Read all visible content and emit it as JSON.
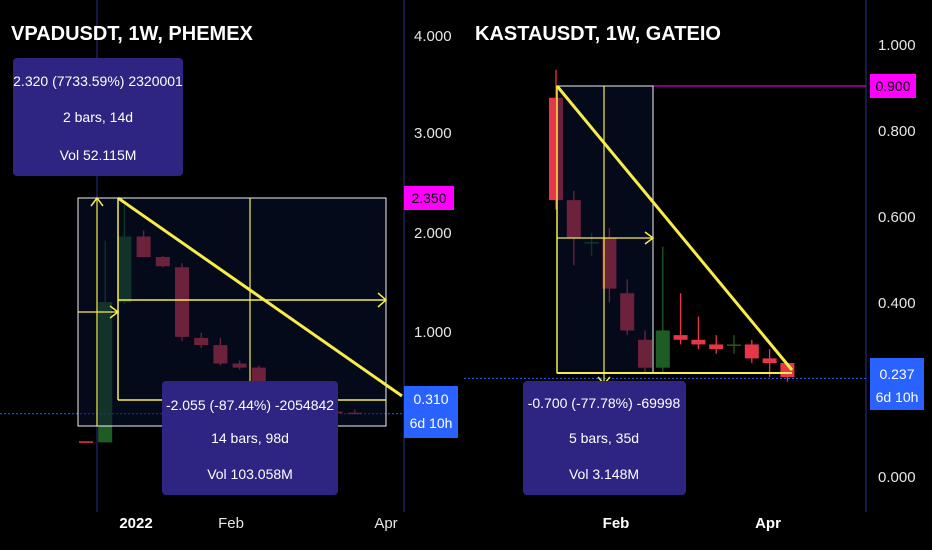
{
  "colors": {
    "background": "#000000",
    "up": "#1e5c25",
    "down": "#e6364a",
    "measure": "#f7ec4b",
    "box_fill": "#2e2482",
    "price_tag_blue": "#2962ff",
    "price_tag_magenta": "#ff00ff",
    "divider": "#2a2f8a"
  },
  "chart_data": [
    {
      "type": "candlestick",
      "title": "VPADUSDT, 1W, PHEMEX",
      "y_ticks": [
        "4.000",
        "3.000",
        "2.000",
        "1.000"
      ],
      "x_ticks": [
        {
          "label": "2022",
          "bold": true
        },
        {
          "label": "Feb",
          "bold": false
        },
        {
          "label": "Apr",
          "bold": false
        }
      ],
      "ylim": [
        -0.65,
        4.35
      ],
      "candles": [
        {
          "o": 0.04,
          "h": 0.04,
          "l": 0.03,
          "c": 0.03
        },
        {
          "o": 0.03,
          "h": 2.0,
          "l": 0.03,
          "c": 1.4
        },
        {
          "o": 1.4,
          "h": 2.35,
          "l": 1.38,
          "c": 2.04
        },
        {
          "o": 2.04,
          "h": 2.1,
          "l": 1.85,
          "c": 1.84
        },
        {
          "o": 1.84,
          "h": 1.85,
          "l": 1.74,
          "c": 1.75
        },
        {
          "o": 1.74,
          "h": 1.78,
          "l": 1.02,
          "c": 1.06
        },
        {
          "o": 1.05,
          "h": 1.1,
          "l": 0.95,
          "c": 0.98
        },
        {
          "o": 0.98,
          "h": 1.05,
          "l": 0.78,
          "c": 0.8
        },
        {
          "o": 0.8,
          "h": 0.83,
          "l": 0.74,
          "c": 0.76
        },
        {
          "o": 0.76,
          "h": 0.78,
          "l": 0.45,
          "c": 0.47
        },
        {
          "o": 0.47,
          "h": 0.5,
          "l": 0.34,
          "c": 0.35
        },
        {
          "o": 0.35,
          "h": 0.6,
          "l": 0.3,
          "c": 0.37
        },
        {
          "o": 0.37,
          "h": 0.44,
          "l": 0.31,
          "c": 0.33
        },
        {
          "o": 0.33,
          "h": 0.42,
          "l": 0.31,
          "c": 0.32
        },
        {
          "o": 0.32,
          "h": 0.35,
          "l": 0.31,
          "c": 0.31
        }
      ],
      "current_price": {
        "value": "0.310",
        "countdown": "6d 10h",
        "y": 0.31
      },
      "marked_price": {
        "value": "2.350",
        "y": 2.35
      },
      "measure_up": {
        "price": "2.320 (7733.59%) 2320001",
        "bars": "2 bars, 14d",
        "vol": "Vol 52.115M"
      },
      "measure_down": {
        "price": "-2.055 (-87.44%) -2054842",
        "bars": "14 bars, 98d",
        "vol": "Vol 103.058M"
      }
    },
    {
      "type": "candlestick",
      "title": "KASTAUSDT, 1W, GATEIO",
      "y_ticks": [
        "1.000",
        "0.800",
        "0.600",
        "0.400",
        "0.000"
      ],
      "x_ticks": [
        {
          "label": "Feb",
          "bold": true
        },
        {
          "label": "Apr",
          "bold": true
        }
      ],
      "ylim": [
        -0.05,
        1.05
      ],
      "candles": [
        {
          "o": 0.84,
          "h": 0.9,
          "l": 0.6,
          "c": 0.62
        },
        {
          "o": 0.62,
          "h": 0.64,
          "l": 0.48,
          "c": 0.54
        },
        {
          "o": 0.53,
          "h": 0.55,
          "l": 0.5,
          "c": 0.53
        },
        {
          "o": 0.54,
          "h": 0.56,
          "l": 0.4,
          "c": 0.43
        },
        {
          "o": 0.42,
          "h": 0.45,
          "l": 0.33,
          "c": 0.34
        },
        {
          "o": 0.32,
          "h": 0.34,
          "l": 0.25,
          "c": 0.26
        },
        {
          "o": 0.26,
          "h": 0.52,
          "l": 0.25,
          "c": 0.34
        },
        {
          "o": 0.33,
          "h": 0.42,
          "l": 0.31,
          "c": 0.32
        },
        {
          "o": 0.32,
          "h": 0.37,
          "l": 0.3,
          "c": 0.31
        },
        {
          "o": 0.31,
          "h": 0.33,
          "l": 0.29,
          "c": 0.3
        },
        {
          "o": 0.31,
          "h": 0.33,
          "l": 0.29,
          "c": 0.31
        },
        {
          "o": 0.31,
          "h": 0.32,
          "l": 0.27,
          "c": 0.28
        },
        {
          "o": 0.28,
          "h": 0.3,
          "l": 0.24,
          "c": 0.27
        },
        {
          "o": 0.27,
          "h": 0.27,
          "l": 0.23,
          "c": 0.24
        }
      ],
      "current_price": {
        "value": "0.237",
        "countdown": "6d 10h",
        "y": 0.237
      },
      "marked_price": {
        "value": "0.900",
        "y": 0.9
      },
      "measure_down": {
        "price": "-0.700 (-77.78%) -69998",
        "bars": "5 bars, 35d",
        "vol": "Vol 3.148M"
      }
    }
  ]
}
